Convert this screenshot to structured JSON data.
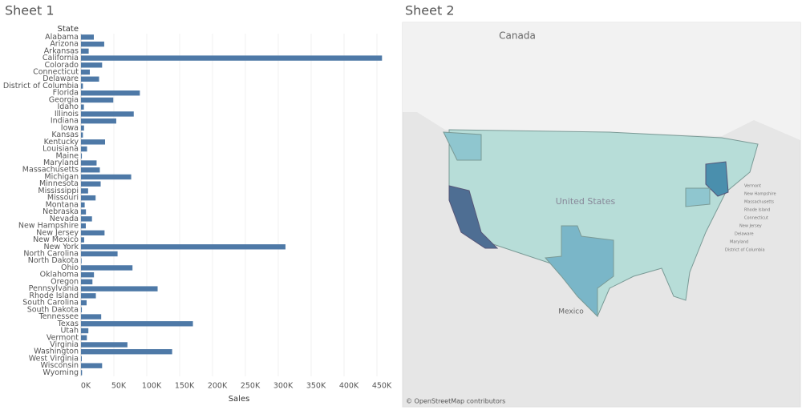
{
  "sheet_titles": [
    "Sheet 1",
    "Sheet 2"
  ],
  "chart_data": {
    "type": "bar",
    "orientation": "horizontal",
    "row_header": "State",
    "x_label": "Sales",
    "color": "#4e79a7",
    "grid": true,
    "categories": [
      "Alabama",
      "Arizona",
      "Arkansas",
      "California",
      "Colorado",
      "Connecticut",
      "Delaware",
      "District of Columbia",
      "Florida",
      "Georgia",
      "Idaho",
      "Illinois",
      "Indiana",
      "Iowa",
      "Kansas",
      "Kentucky",
      "Louisiana",
      "Maine",
      "Maryland",
      "Massachusetts",
      "Michigan",
      "Minnesota",
      "Mississippi",
      "Missouri",
      "Montana",
      "Nebraska",
      "Nevada",
      "New Hampshire",
      "New Jersey",
      "New Mexico",
      "New York",
      "North Carolina",
      "North Dakota",
      "Ohio",
      "Oklahoma",
      "Oregon",
      "Pennsylvania",
      "Rhode Island",
      "South Carolina",
      "South Dakota",
      "Tennessee",
      "Texas",
      "Utah",
      "Vermont",
      "Virginia",
      "Washington",
      "West Virginia",
      "Wisconsin",
      "Wyoming"
    ],
    "values": [
      19500,
      35300,
      11700,
      457700,
      32100,
      13400,
      27500,
      2900,
      89500,
      49100,
      4400,
      80200,
      53600,
      4600,
      2900,
      36600,
      9200,
      1300,
      23700,
      28600,
      76300,
      29900,
      10800,
      22200,
      5600,
      7500,
      16700,
      7300,
      35800,
      4800,
      310900,
      55600,
      900,
      78300,
      19700,
      17400,
      116500,
      22600,
      8500,
      1300,
      30700,
      170200,
      11200,
      8900,
      70600,
      138600,
      1200,
      32100,
      1600
    ],
    "xlim": [
      0,
      460000
    ],
    "xticks": [
      {
        "value": 0,
        "label": "0K"
      },
      {
        "value": 50000,
        "label": "50K"
      },
      {
        "value": 100000,
        "label": "100K"
      },
      {
        "value": 150000,
        "label": "150K"
      },
      {
        "value": 200000,
        "label": "200K"
      },
      {
        "value": 250000,
        "label": "250K"
      },
      {
        "value": 300000,
        "label": "300K"
      },
      {
        "value": 350000,
        "label": "350K"
      },
      {
        "value": 400000,
        "label": "400K"
      },
      {
        "value": 450000,
        "label": "450K"
      }
    ]
  },
  "map": {
    "labels": [
      "Canada",
      "United States",
      "Mexico"
    ],
    "small_labels": [
      "Vermont",
      "New Hampshire",
      "Massachusetts",
      "Rhode Island",
      "Connecticut",
      "New Jersey",
      "Delaware",
      "Maryland",
      "District of Columbia"
    ],
    "attribution": "© OpenStreetMap contributors"
  }
}
